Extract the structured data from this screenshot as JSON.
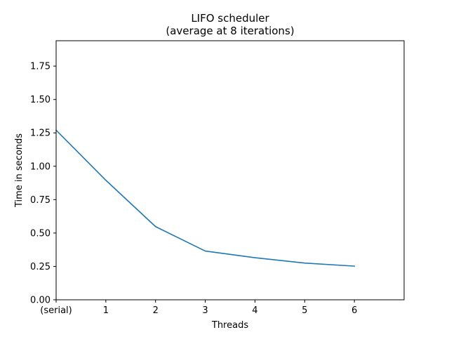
{
  "chart_data": {
    "type": "line",
    "title": "LIFO scheduler",
    "subtitle": "(average at 8 iterations)",
    "xlabel": "Threads",
    "ylabel": "Time in seconds",
    "x_ticks": [
      "(serial)",
      "1",
      "2",
      "3",
      "4",
      "5",
      "6"
    ],
    "y_ticks": [
      "0.00",
      "0.25",
      "0.50",
      "0.75",
      "1.00",
      "1.25",
      "1.50",
      "1.75"
    ],
    "xlim": [
      0,
      7
    ],
    "ylim": [
      0,
      1.94
    ],
    "grid": false,
    "series": [
      {
        "x": [
          0,
          1,
          2,
          3,
          4,
          5,
          6
        ],
        "values": [
          1.27,
          0.895,
          0.548,
          0.365,
          0.315,
          0.275,
          0.252
        ],
        "color": "#1f77b4"
      }
    ]
  }
}
